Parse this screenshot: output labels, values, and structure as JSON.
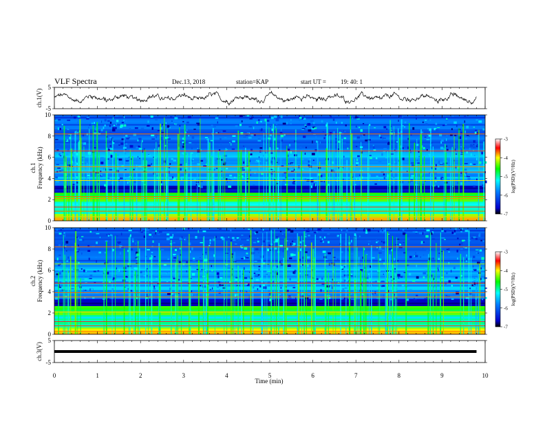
{
  "header": {
    "title": "VLF Spectra",
    "date": "Dec.13, 2018",
    "station": "station=KAP",
    "start_label": "start UT =",
    "start_time": "19: 40: 1"
  },
  "chart_data": [
    {
      "type": "line",
      "name": "ch1-waveform",
      "ylabel": "ch.1(V)",
      "ylim": [
        -5,
        5
      ],
      "yticks": [
        "5",
        "-5"
      ],
      "xlim": [
        0,
        10
      ]
    },
    {
      "type": "heatmap",
      "name": "ch1-spectrogram",
      "ylabel": "ch.1\nFrequency (kHz)",
      "ylim": [
        0,
        10
      ],
      "yticks": [
        "0",
        "2",
        "4",
        "6",
        "8",
        "10"
      ],
      "xlim": [
        0,
        10
      ],
      "colorbar": {
        "label": "log(PSD)(V²/Hz)",
        "range": [
          -7,
          -3
        ],
        "ticks": [
          "-3",
          "-4",
          "-5",
          "-6",
          "-7"
        ]
      }
    },
    {
      "type": "heatmap",
      "name": "ch2-spectrogram",
      "ylabel": "ch.2\nFrequency (kHz)",
      "ylim": [
        0,
        10
      ],
      "yticks": [
        "0",
        "2",
        "4",
        "6",
        "8",
        "10"
      ],
      "xlim": [
        0,
        10
      ],
      "colorbar": {
        "label": "log(PSD)(V²/Hz)",
        "range": [
          -7,
          -3
        ],
        "ticks": [
          "-3",
          "-4",
          "-5",
          "-6",
          "-7"
        ]
      }
    },
    {
      "type": "line",
      "name": "ch3-waveform",
      "ylabel": "ch.3(V)",
      "ylim": [
        -5,
        5
      ],
      "yticks": [
        "5",
        "-5"
      ],
      "xlim": [
        0,
        10
      ],
      "value_constant": 0
    }
  ],
  "xaxis": {
    "label": "Time (min)",
    "ticks": [
      "0",
      "1",
      "2",
      "3",
      "4",
      "5",
      "6",
      "7",
      "8",
      "9",
      "10"
    ]
  },
  "colors": {
    "low": "#00008b",
    "mid": "#00ff00",
    "high": "#ff0000",
    "frame": "#000000"
  }
}
